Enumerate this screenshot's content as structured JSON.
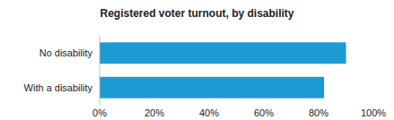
{
  "chart_data": {
    "type": "bar",
    "title": "Registered voter turnout, by disability",
    "orientation": "horizontal",
    "categories": [
      "No disability",
      "With a disability"
    ],
    "values": [
      90,
      82
    ],
    "color": "#1b9bd1",
    "xlim": [
      0,
      100
    ],
    "xticks": [
      {
        "value": 0,
        "label": "0%"
      },
      {
        "value": 20,
        "label": "20%"
      },
      {
        "value": 40,
        "label": "40%"
      },
      {
        "value": 60,
        "label": "60%"
      },
      {
        "value": 80,
        "label": "80%"
      },
      {
        "value": 100,
        "label": "100%"
      }
    ],
    "grid": false
  }
}
